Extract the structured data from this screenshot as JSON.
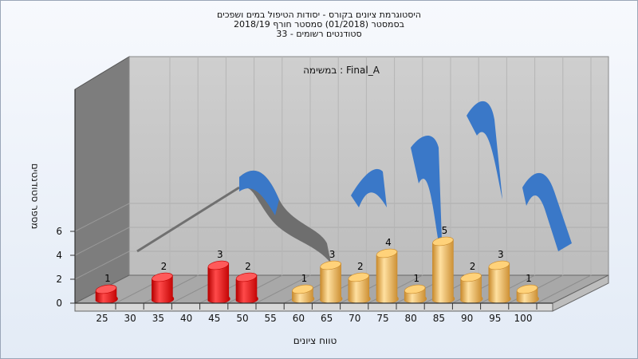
{
  "chart_data": {
    "type": "bar",
    "title_lines": [
      "היסטוגרמת ציונים בקורס - יסודות הטיפול במים ושפכים",
      "בסמסטר  (01/2018)  סמסטר חורף 2018/19",
      "סטודנטים רשומים - 33"
    ],
    "series_label": "במשימה : Final_A",
    "xlabel": "טווח ציונים",
    "ylabel": "מספר סטודנטים",
    "ylim": [
      0,
      6
    ],
    "y_ticks": [
      "0",
      "2",
      "4",
      "6"
    ],
    "x_ticks": [
      "25",
      "30",
      "35",
      "40",
      "45",
      "50",
      "55",
      "60",
      "65",
      "70",
      "75",
      "80",
      "85",
      "90",
      "95",
      "100"
    ],
    "bars": [
      {
        "x": 25,
        "value": 1,
        "label": "1",
        "color": "red"
      },
      {
        "x": 35,
        "value": 2,
        "label": "2",
        "color": "red"
      },
      {
        "x": 45,
        "value": 3,
        "label": "3",
        "color": "red"
      },
      {
        "x": 50,
        "value": 2,
        "label": "2",
        "color": "red"
      },
      {
        "x": 60,
        "value": 1,
        "label": "1",
        "color": "gold"
      },
      {
        "x": 65,
        "value": 3,
        "label": "3",
        "color": "gold"
      },
      {
        "x": 70,
        "value": 2,
        "label": "2",
        "color": "gold"
      },
      {
        "x": 75,
        "value": 4,
        "label": "4",
        "color": "gold"
      },
      {
        "x": 80,
        "value": 1,
        "label": "1",
        "color": "gold"
      },
      {
        "x": 85,
        "value": 5,
        "label": "5",
        "color": "gold"
      },
      {
        "x": 90,
        "value": 2,
        "label": "2",
        "color": "gold"
      },
      {
        "x": 95,
        "value": 3,
        "label": "3",
        "color": "gold"
      },
      {
        "x": 100,
        "value": 1,
        "label": "1",
        "color": "gold"
      }
    ],
    "colors": {
      "red_light": "#ff5a5a",
      "red_dark": "#c00000",
      "gold_light": "#ffd27a",
      "gold_dark": "#c98a2c",
      "ribbon_blue": "#3a78c8",
      "ribbon_gray": "#707070",
      "back_wall": "#c4c4c4",
      "side_wall": "#7d7d7d",
      "floor": "#a8a8a8"
    },
    "grid": true
  }
}
